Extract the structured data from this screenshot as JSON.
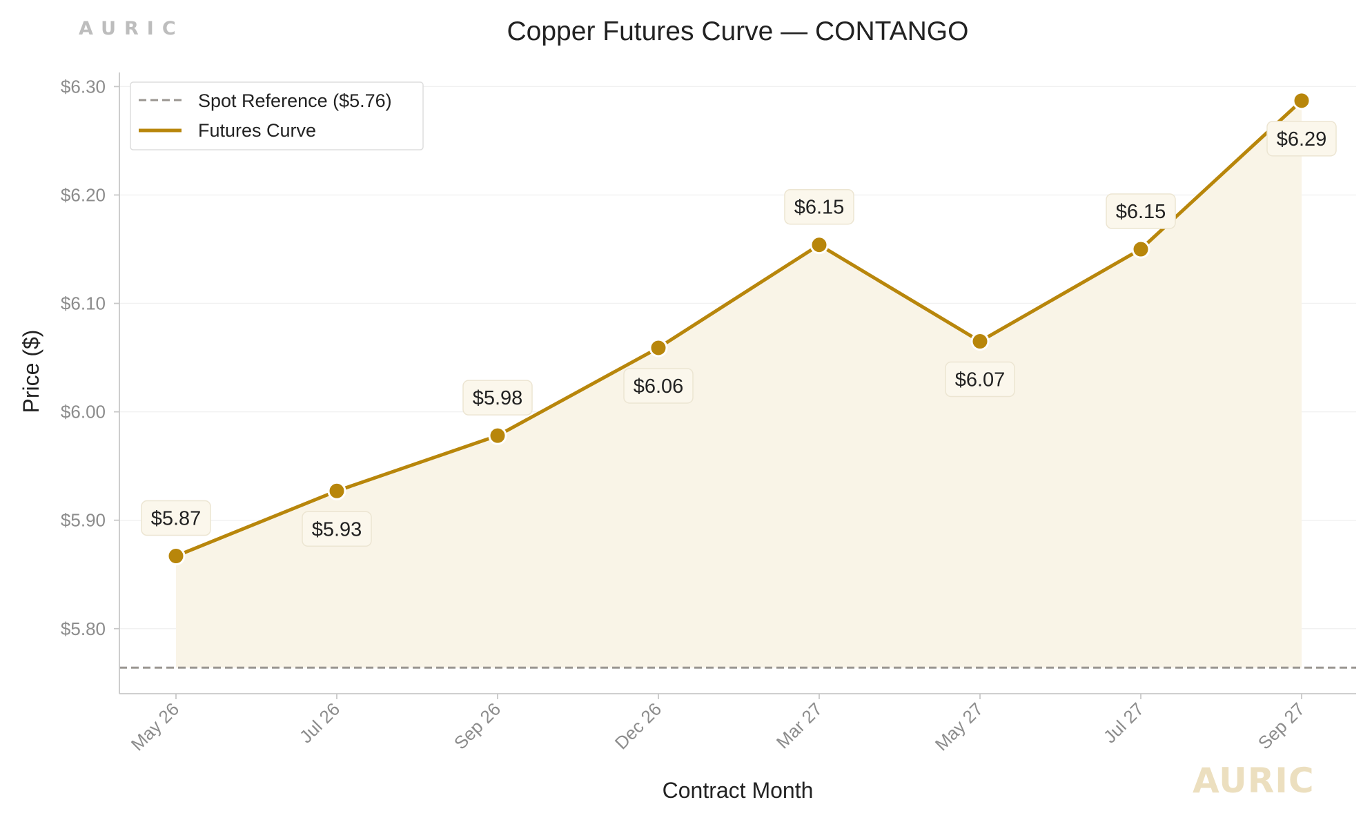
{
  "brand": {
    "top": "AURIC",
    "bottom": "AURIC"
  },
  "colors": {
    "curve": "#b8860b",
    "fill": "#f9f4e7",
    "spot": "#9a9691",
    "axis": "#c8c8c8",
    "tick_text": "#8c8c8c",
    "label_bg": "#fbf7ec",
    "label_border": "#ece5d2"
  },
  "chart_data": {
    "type": "line",
    "title": "Copper Futures Curve — CONTANGO",
    "xlabel": "Contract Month",
    "ylabel": "Price ($)",
    "categories": [
      "May 26",
      "Jul 26",
      "Sep 26",
      "Dec 26",
      "Mar 27",
      "May 27",
      "Jul 27",
      "Sep 27"
    ],
    "series": [
      {
        "name": "Futures Curve",
        "values": [
          5.867,
          5.927,
          5.978,
          6.059,
          6.154,
          6.065,
          6.15,
          6.287
        ],
        "labels": [
          "$5.87",
          "$5.93",
          "$5.98",
          "$6.06",
          "$6.15",
          "$6.07",
          "$6.15",
          "$6.29"
        ],
        "label_side": [
          "above",
          "below",
          "above",
          "below",
          "above",
          "below",
          "above",
          "below"
        ]
      }
    ],
    "reference_line": {
      "name": "Spot Reference ($5.76)",
      "value": 5.764,
      "style": "dashed"
    },
    "ylim": [
      5.74,
      6.313
    ],
    "yticks": [
      5.8,
      5.9,
      6.0,
      6.1,
      6.2,
      6.3
    ],
    "ytick_labels": [
      "$5.80",
      "$5.90",
      "$6.00",
      "$6.10",
      "$6.20",
      "$6.30"
    ],
    "grid": true,
    "legend": {
      "placement": "top-left",
      "entries": [
        "Spot Reference ($5.76)",
        "Futures Curve"
      ]
    },
    "fill_under_curve": true
  }
}
